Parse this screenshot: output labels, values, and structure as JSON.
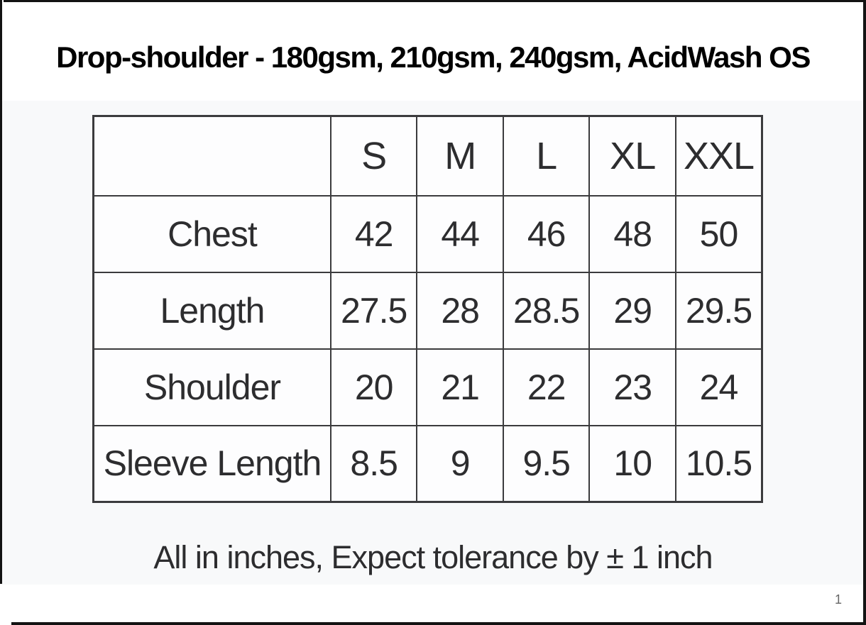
{
  "page": {
    "title": "Drop-shoulder - 180gsm, 210gsm, 240gsm, AcidWash OS",
    "footer_note": "All in inches, Expect tolerance by ± 1 inch",
    "page_number": "1"
  },
  "size_table": {
    "size_headers": [
      "S",
      "M",
      "L",
      "XL",
      "XXL"
    ],
    "rows": [
      {
        "label": "Chest",
        "values": [
          "42",
          "44",
          "46",
          "48",
          "50"
        ]
      },
      {
        "label": "Length",
        "values": [
          "27.5",
          "28",
          "28.5",
          "29",
          "29.5"
        ]
      },
      {
        "label": "Shoulder",
        "values": [
          "20",
          "21",
          "22",
          "23",
          "24"
        ]
      },
      {
        "label": "Sleeve Length",
        "values": [
          "8.5",
          "9",
          "9.5",
          "10",
          "10.5"
        ]
      }
    ],
    "units_note": "inches",
    "tolerance": "± 1 inch"
  },
  "colors": {
    "frame": "#131313",
    "table_border": "#3b3b3d",
    "text": "#2d2d2f",
    "title_text": "#000000",
    "image_background": "#f8f9fa",
    "page_background": "#ffffff",
    "page_number_text": "#666666"
  }
}
